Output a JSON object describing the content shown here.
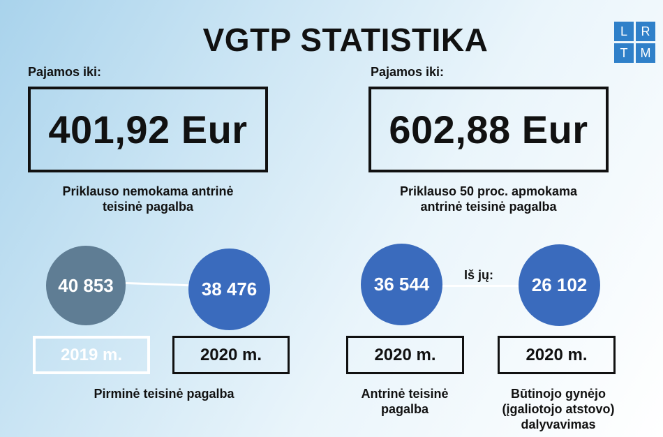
{
  "title": "VGTP STATISTIKA",
  "logo": {
    "letters": [
      "L",
      "R",
      "T",
      "M"
    ],
    "color": "#2f80c9"
  },
  "left_income": {
    "label": "Pajamos iki:",
    "amount": "401,92 Eur",
    "description_line1": "Priklauso nemokama antrinė",
    "description_line2": "teisinė pagalba"
  },
  "right_income": {
    "label": "Pajamos iki:",
    "amount": "602,88 Eur",
    "description_line1": "Priklauso 50 proc. apmokama",
    "description_line2": "antrinė teisinė pagalba"
  },
  "stats": {
    "primary_2019": {
      "value": "40 853",
      "year": "2019 m.",
      "color": "#5f7d94"
    },
    "primary_2020": {
      "value": "38 476",
      "year": "2020 m.",
      "color": "#3a6bbd"
    },
    "primary_caption": "Pirminė teisinė pagalba",
    "secondary_2020": {
      "value": "36 544",
      "year": "2020 m.",
      "color": "#3a6bbd"
    },
    "of_which": "Iš jų:",
    "defender_2020": {
      "value": "26 102",
      "year": "2020 m.",
      "color": "#3a6bbd"
    },
    "secondary_caption_line1": "Antrinė teisinė",
    "secondary_caption_line2": "pagalba",
    "defender_caption_line1": "Būtinojo gynėjo",
    "defender_caption_line2": "(įgaliotojo atstovo)",
    "defender_caption_line3": "dalyvavimas"
  }
}
